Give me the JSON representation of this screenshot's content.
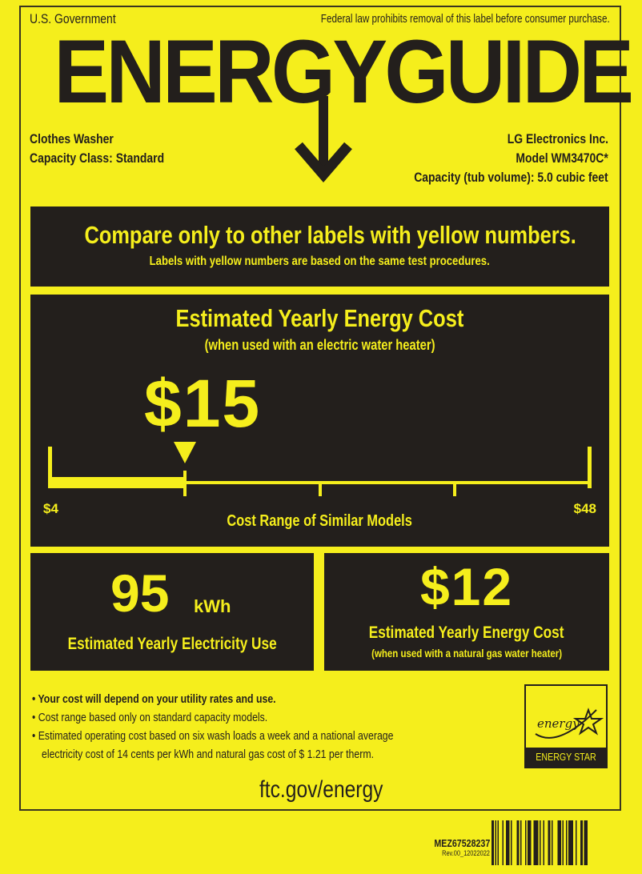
{
  "header": {
    "gov": "U.S. Government",
    "notice": "Federal law prohibits removal of this label before consumer purchase.",
    "title": "ENERGYGUIDE"
  },
  "product": {
    "type": "Clothes Washer",
    "capacity_class": "Capacity Class: Standard",
    "manufacturer": "LG Electronics Inc.",
    "model_label": "Model",
    "model": "WM3470C*",
    "capacity": "Capacity (tub volume): 5.0 cubic feet"
  },
  "compare": {
    "headline": "Compare only to other labels with yellow numbers.",
    "sub": "Labels with yellow numbers are based on the same test procedures."
  },
  "cost": {
    "title": "Estimated Yearly Energy Cost",
    "subtitle": "(when used with an electric water heater)",
    "value": "$15",
    "value_num": 15,
    "min_label": "$4",
    "max_label": "$48",
    "min": 4,
    "max": 48,
    "range_label": "Cost Range of Similar Models"
  },
  "electricity": {
    "value": "95",
    "unit": "kWh",
    "label": "Estimated Yearly Electricity Use"
  },
  "gas": {
    "value": "$12",
    "label": "Estimated Yearly Energy Cost",
    "sub": "(when used with a natural gas water heater)"
  },
  "notes": [
    "Your cost will depend on your utility rates and use.",
    "Cost range based only on standard capacity models.",
    "Estimated operating cost based on six wash loads a week and a national average",
    "electricity cost of 14 cents per kWh and natural gas cost of $ 1.21 per therm."
  ],
  "footer": {
    "url": "ftc.gov/energy",
    "energy_star": "ENERGY STAR",
    "energy_script": "energy"
  },
  "barcode": {
    "code": "MEZ67528237",
    "rev": "Rev.00_12022022"
  },
  "colors": {
    "yellow": "#f5ee1c",
    "dark": "#231f1c"
  }
}
